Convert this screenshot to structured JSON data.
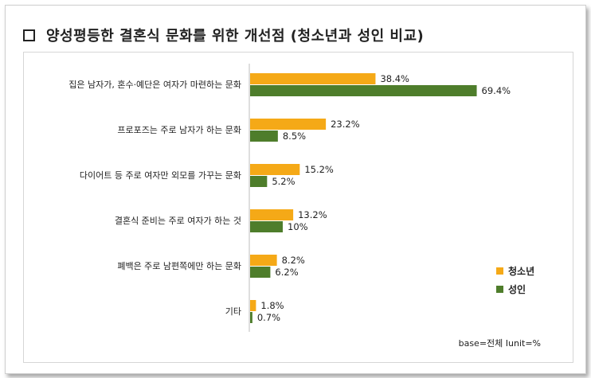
{
  "title": "양성평등한 결혼식 문화를 위한 개선점 (청소년과 성인 비교)",
  "base_note": "base=전체 Ⅰunit=%",
  "chart_data": {
    "type": "bar",
    "orientation": "horizontal",
    "categories": [
      "집은 남자가, 혼수·예단은 여자가 마련하는 문화",
      "프로포즈는 주로 남자가 하는 문화",
      "다이어트 등 주로 여자만 외모를 가꾸는 문화",
      "결혼식 준비는 주로 여자가 하는 것",
      "폐백은 주로 남편쪽에만 하는 문화",
      "기타"
    ],
    "series": [
      {
        "name": "청소년",
        "color": "#F5A917",
        "values": [
          38.4,
          23.2,
          15.2,
          13.2,
          8.2,
          1.8
        ],
        "labels": [
          "38.4%",
          "23.2%",
          "15.2%",
          "13.2%",
          "8.2%",
          "1.8%"
        ]
      },
      {
        "name": "성인",
        "color": "#4E7D2B",
        "values": [
          69.4,
          8.5,
          5.2,
          10,
          6.2,
          0.7
        ],
        "labels": [
          "69.4%",
          "8.5%",
          "5.2%",
          "10%",
          "6.2%",
          "0.7%"
        ]
      }
    ],
    "xlim": [
      0,
      80
    ],
    "grid": false,
    "legend_position": "bottom-right"
  }
}
